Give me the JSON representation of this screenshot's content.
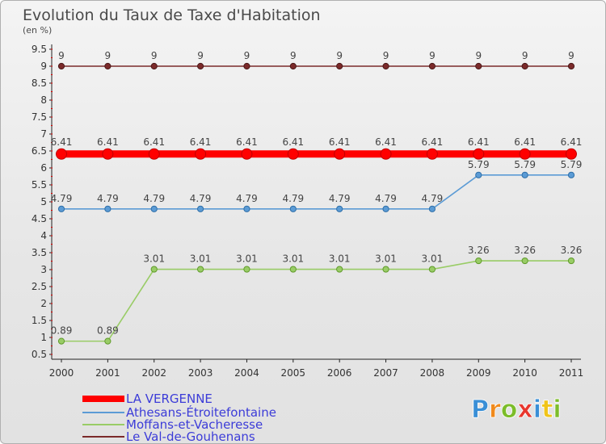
{
  "chart_data": {
    "type": "line",
    "title": "Evolution du Taux de Taxe d'Habitation",
    "subtitle": "(en %)",
    "x": [
      "2000",
      "2001",
      "2002",
      "2003",
      "2004",
      "2005",
      "2006",
      "2007",
      "2008",
      "2009",
      "2010",
      "2011"
    ],
    "ylim": [
      0.5,
      9.5
    ],
    "yticks": [
      "0.5",
      "1",
      "1.5",
      "2",
      "2.5",
      "3",
      "3.5",
      "4",
      "4.5",
      "5",
      "5.5",
      "6",
      "6.5",
      "7",
      "7.5",
      "8",
      "8.5",
      "9",
      "9.5"
    ],
    "series": [
      {
        "name": "LA VERGENNE",
        "color": "#ff0000",
        "values": [
          6.41,
          6.41,
          6.41,
          6.41,
          6.41,
          6.41,
          6.41,
          6.41,
          6.41,
          6.41,
          6.41,
          6.41
        ],
        "labels": [
          "6.41",
          "6.41",
          "6.41",
          "6.41",
          "6.41",
          "6.41",
          "6.41",
          "6.41",
          "6.41",
          "6.41",
          "6.41",
          "6.41"
        ]
      },
      {
        "name": "Athesans-Étroitefontaine",
        "color": "#5b9bd5",
        "values": [
          4.79,
          4.79,
          4.79,
          4.79,
          4.79,
          4.79,
          4.79,
          4.79,
          4.79,
          5.79,
          5.79,
          5.79
        ],
        "labels": [
          "4.79",
          "4.79",
          "4.79",
          "4.79",
          "4.79",
          "4.79",
          "4.79",
          "4.79",
          "4.79",
          "5.79",
          "5.79",
          "5.79"
        ]
      },
      {
        "name": "Moffans-et-Vacheresse",
        "color": "#99cc66",
        "values": [
          0.89,
          0.89,
          3.01,
          3.01,
          3.01,
          3.01,
          3.01,
          3.01,
          3.01,
          3.26,
          3.26,
          3.26
        ],
        "labels": [
          "0.89",
          "0.89",
          "3.01",
          "3.01",
          "3.01",
          "3.01",
          "3.01",
          "3.01",
          "3.01",
          "3.26",
          "3.26",
          "3.26"
        ]
      },
      {
        "name": "Le Val-de-Gouhenans",
        "color": "#7b2a2a",
        "values": [
          9,
          9,
          9,
          9,
          9,
          9,
          9,
          9,
          9,
          9,
          9,
          9
        ],
        "labels": [
          "9",
          "9",
          "9",
          "9",
          "9",
          "9",
          "9",
          "9",
          "9",
          "9",
          "9",
          "9"
        ]
      }
    ],
    "grid": false,
    "legend_position": "bottom-left"
  },
  "logo": {
    "text": "Proxiti",
    "letter_colors": [
      "#3a8fd6",
      "#f08a1c",
      "#7cbd2a",
      "#e8362d",
      "#3a8fd6",
      "#f0c419",
      "#7cbd2a"
    ]
  }
}
